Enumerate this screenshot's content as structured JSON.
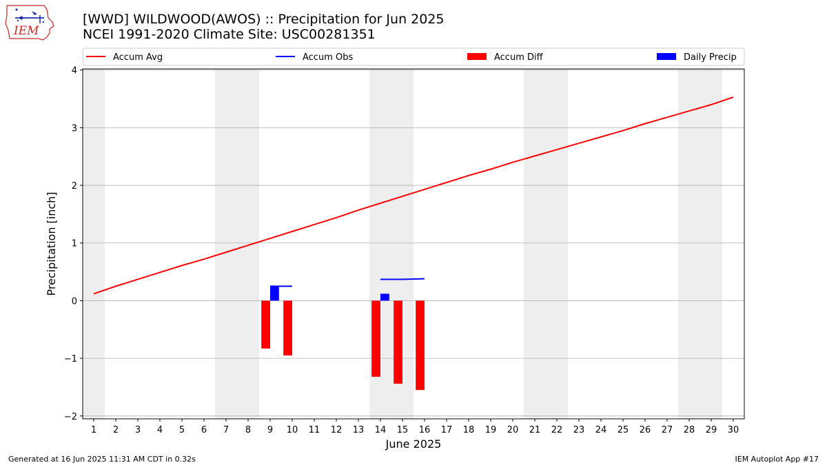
{
  "header": {
    "title": "[WWD] WILDWOOD(AWOS) :: Precipitation for Jun 2025",
    "subtitle": "NCEI 1991-2020 Climate Site: USC00281351",
    "logo_text": "IEM"
  },
  "footer": {
    "generated": "Generated at 16 Jun 2025 11:31 AM CDT in 0.32s",
    "app": "IEM Autoplot App #17"
  },
  "colors": {
    "avg": "#ff0000",
    "obs": "#0000ff",
    "diff": "#ff0000",
    "daily": "#0000ff",
    "weekend_shade": "#eeeeee",
    "grid": "#b0b0b0"
  },
  "chart_data": {
    "type": "bar",
    "xlabel": "June 2025",
    "ylabel": "Precipitation [inch]",
    "xlim": [
      0.5,
      30.5
    ],
    "ylim": [
      -2.05,
      4.02
    ],
    "yticks": [
      -2,
      -1,
      0,
      1,
      2,
      3,
      4
    ],
    "ytick_labels": [
      "−2",
      "−1",
      "0",
      "1",
      "2",
      "3",
      "4"
    ],
    "xticks": [
      1,
      2,
      3,
      4,
      5,
      6,
      7,
      8,
      9,
      10,
      11,
      12,
      13,
      14,
      15,
      16,
      17,
      18,
      19,
      20,
      21,
      22,
      23,
      24,
      25,
      26,
      27,
      28,
      29,
      30
    ],
    "grid": "horizontal",
    "legend_position": "top",
    "shaded_weekends": [
      [
        0.5,
        1.5
      ],
      [
        6.5,
        8.5
      ],
      [
        13.5,
        15.5
      ],
      [
        20.5,
        22.5
      ],
      [
        27.5,
        29.5
      ]
    ],
    "series": [
      {
        "name": "Accum Avg",
        "kind": "line",
        "x": [
          1,
          2,
          3,
          4,
          5,
          6,
          7,
          8,
          9,
          10,
          11,
          12,
          13,
          14,
          15,
          16,
          17,
          18,
          19,
          20,
          21,
          22,
          23,
          24,
          25,
          26,
          27,
          28,
          29,
          30
        ],
        "values": [
          0.12,
          0.25,
          0.37,
          0.49,
          0.61,
          0.72,
          0.84,
          0.96,
          1.08,
          1.2,
          1.32,
          1.44,
          1.57,
          1.69,
          1.81,
          1.93,
          2.05,
          2.17,
          2.28,
          2.4,
          2.51,
          2.62,
          2.73,
          2.84,
          2.95,
          3.07,
          3.18,
          3.29,
          3.4,
          3.53
        ]
      },
      {
        "name": "Accum Obs",
        "kind": "line",
        "segments": [
          {
            "x": [
              9,
              10
            ],
            "values": [
              0.25,
              0.25
            ]
          },
          {
            "x": [
              14,
              15,
              16
            ],
            "values": [
              0.37,
              0.37,
              0.38
            ]
          }
        ]
      },
      {
        "name": "Accum Diff",
        "kind": "bar",
        "x": [
          8.8,
          9.8,
          13.8,
          14.8,
          15.8
        ],
        "values": [
          -0.83,
          -0.95,
          -1.32,
          -1.44,
          -1.55
        ]
      },
      {
        "name": "Daily Precip",
        "kind": "bar",
        "x": [
          9.2,
          14.2
        ],
        "values": [
          0.25,
          0.12
        ]
      }
    ]
  }
}
